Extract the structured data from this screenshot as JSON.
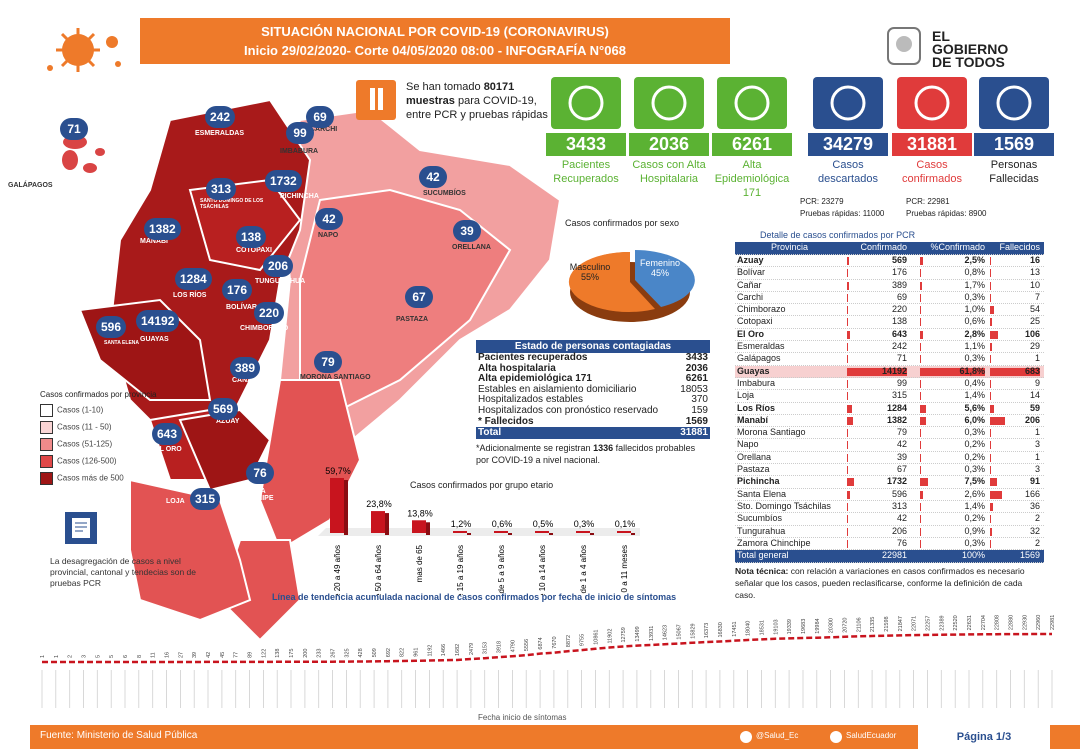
{
  "header": {
    "title": "SITUACIÓN NACIONAL POR  COVID-19 (CORONAVIRUS)",
    "subtitle": "Inicio 29/02/2020- Corte 04/05/2020 08:00  - INFOGRAFÍA N°068"
  },
  "logo": {
    "line1": "EL",
    "line2": "GOBIERNO",
    "line3": "DE TODOS"
  },
  "muestras": {
    "text_pre": "Se han tomado",
    "number": "80171",
    "text_bold": "muestras",
    "text_post": "para COVID-19, entre PCR y pruebas rápidas"
  },
  "stats": [
    {
      "value": "3433",
      "label": "Pacientes Recuperados",
      "color": "#5bb233",
      "icon": "recovered-icon"
    },
    {
      "value": "2036",
      "label": "Casos con Alta Hospitalaria",
      "color": "#5bb233",
      "icon": "hospital-discharge-icon"
    },
    {
      "value": "6261",
      "label": "Alta Epidemiológica 171",
      "color": "#5bb233",
      "icon": "epidemiological-icon"
    },
    {
      "value": "34279",
      "label": "Casos descartados",
      "color": "#2a4f8f",
      "icon": "minus-icon"
    },
    {
      "value": "31881",
      "label": "Casos confirmados",
      "color": "#e03b3b",
      "icon": "check-icon"
    },
    {
      "value": "1569",
      "label": "Personas Fallecidas",
      "color": "#2a4f8f",
      "icon": "ribbon-icon"
    }
  ],
  "tests": {
    "descartados_pcr": "PCR: 23279",
    "descartados_rapidas": "Pruebas rápidas: 11000",
    "confirmados_pcr": "PCR: 22981",
    "confirmados_rapidas": "Pruebas rápidas: 8900"
  },
  "map_bubbles": [
    {
      "v": "71"
    },
    {
      "v": "242"
    },
    {
      "v": "69"
    },
    {
      "v": "99"
    },
    {
      "v": "42"
    },
    {
      "v": "313"
    },
    {
      "v": "1732"
    },
    {
      "v": "1382"
    },
    {
      "v": "138"
    },
    {
      "v": "42"
    },
    {
      "v": "39"
    },
    {
      "v": "206"
    },
    {
      "v": "1284"
    },
    {
      "v": "176"
    },
    {
      "v": "67"
    },
    {
      "v": "220"
    },
    {
      "v": "596"
    },
    {
      "v": "14192"
    },
    {
      "v": "79"
    },
    {
      "v": "389"
    },
    {
      "v": "569"
    },
    {
      "v": "643"
    },
    {
      "v": "76"
    },
    {
      "v": "315"
    }
  ],
  "map_labels": {
    "galapagos": "GALÁPAGOS",
    "esmeraldas": "ESMERALDAS",
    "carchi": "CARCHI",
    "imbabura": "IMBABURA",
    "sucumbios": "SUCUMBÍOS",
    "pichincha": "PICHINCHA",
    "tsachilas": "SANTO DOMINGO DE LOS TSÁCHILAS",
    "manabi": "MANABÍ",
    "cotopaxi": "COTOPAXI",
    "napo": "NAPO",
    "orellana": "ORELLANA",
    "tungurahua": "TUNGURAHUA",
    "losrios": "LOS RÍOS",
    "bolivar": "BOLÍVAR",
    "pastaza": "PASTAZA",
    "chimborazo": "CHIMBORAZO",
    "guayas": "GUAYAS",
    "santaelena": "SANTA ELENA",
    "morona": "MORONA SANTIAGO",
    "canar": "CAÑAR",
    "azuay": "AZUAY",
    "elro": "EL ORO",
    "zamora": "ZAMORA CHINCHIPE",
    "loja": "LOJA"
  },
  "legend": {
    "title": "Casos confirmados por provincia",
    "items": [
      {
        "label": "Casos (1-10)",
        "color": "#ffffff"
      },
      {
        "label": "Casos (11 - 50)",
        "color": "#f9d4d4"
      },
      {
        "label": "Casos (51-125)",
        "color": "#f08b8b"
      },
      {
        "label": "Casos (126-500)",
        "color": "#e04848"
      },
      {
        "label": "Casos más de 500",
        "color": "#9e1515"
      }
    ]
  },
  "disaggregation_note": "La desagregación de casos a nivel provincial, cantonal y tendecias son de pruebas PCR",
  "sexo": {
    "title": "Casos confirmados por sexo",
    "labels": [
      "Masculino",
      "Femenino"
    ],
    "percents": [
      "55%",
      "45%"
    ],
    "colors": [
      "#ee7a2a",
      "#4a86c8"
    ]
  },
  "estado": {
    "title": "Estado de personas contagiadas",
    "rows": [
      {
        "label": "Pacientes recuperados",
        "value": "3433",
        "bold": true
      },
      {
        "label": "Alta hospitalaria",
        "value": "2036",
        "bold": true
      },
      {
        "label": "Alta epidemiológica 171",
        "value": "6261",
        "bold": true
      },
      {
        "label": "Estables en aislamiento domiciliario",
        "value": "18053",
        "bold": false
      },
      {
        "label": "Hospitalizados estables",
        "value": "370",
        "bold": false
      },
      {
        "label": "Hospitalizados con pronóstico reservado",
        "value": "159",
        "bold": false
      },
      {
        "label": "* Fallecidos",
        "value": "1569",
        "bold": true
      }
    ],
    "total_label": "Total",
    "total_value": "31881",
    "note_pre": "*Adicionalmente se registran",
    "note_num": "1336",
    "note_post": "fallecidos probables por COVID-19 a nivel nacional."
  },
  "table": {
    "title": "Detalle de casos confirmados por PCR",
    "headers": [
      "Provincia",
      "Confirmado",
      "%Confirmado",
      "Fallecidos"
    ],
    "rows": [
      {
        "p": "Azuay",
        "c": "569",
        "pc": "2,5%",
        "f": "16",
        "b": true,
        "cn": 569,
        "pn": 2.5,
        "fn": 16
      },
      {
        "p": "Bolívar",
        "c": "176",
        "pc": "0,8%",
        "f": "13",
        "b": false,
        "cn": 176,
        "pn": 0.8,
        "fn": 13
      },
      {
        "p": "Cañar",
        "c": "389",
        "pc": "1,7%",
        "f": "10",
        "b": false,
        "cn": 389,
        "pn": 1.7,
        "fn": 10
      },
      {
        "p": "Carchi",
        "c": "69",
        "pc": "0,3%",
        "f": "7",
        "b": false,
        "cn": 69,
        "pn": 0.3,
        "fn": 7
      },
      {
        "p": "Chimborazo",
        "c": "220",
        "pc": "1,0%",
        "f": "54",
        "b": false,
        "cn": 220,
        "pn": 1.0,
        "fn": 54
      },
      {
        "p": "Cotopaxi",
        "c": "138",
        "pc": "0,6%",
        "f": "25",
        "b": false,
        "cn": 138,
        "pn": 0.6,
        "fn": 25
      },
      {
        "p": "El Oro",
        "c": "643",
        "pc": "2,8%",
        "f": "106",
        "b": true,
        "cn": 643,
        "pn": 2.8,
        "fn": 106
      },
      {
        "p": "Esmeraldas",
        "c": "242",
        "pc": "1,1%",
        "f": "29",
        "b": false,
        "cn": 242,
        "pn": 1.1,
        "fn": 29
      },
      {
        "p": "Galápagos",
        "c": "71",
        "pc": "0,3%",
        "f": "1",
        "b": false,
        "cn": 71,
        "pn": 0.3,
        "fn": 1
      },
      {
        "p": "Guayas",
        "c": "14192",
        "pc": "61,8%",
        "f": "683",
        "b": true,
        "cn": 14192,
        "pn": 61.8,
        "fn": 683
      },
      {
        "p": "Imbabura",
        "c": "99",
        "pc": "0,4%",
        "f": "9",
        "b": false,
        "cn": 99,
        "pn": 0.4,
        "fn": 9
      },
      {
        "p": "Loja",
        "c": "315",
        "pc": "1,4%",
        "f": "14",
        "b": false,
        "cn": 315,
        "pn": 1.4,
        "fn": 14
      },
      {
        "p": "Los Ríos",
        "c": "1284",
        "pc": "5,6%",
        "f": "59",
        "b": true,
        "cn": 1284,
        "pn": 5.6,
        "fn": 59
      },
      {
        "p": "Manabí",
        "c": "1382",
        "pc": "6,0%",
        "f": "206",
        "b": true,
        "cn": 1382,
        "pn": 6.0,
        "fn": 206
      },
      {
        "p": "Morona Santiago",
        "c": "79",
        "pc": "0,3%",
        "f": "1",
        "b": false,
        "cn": 79,
        "pn": 0.3,
        "fn": 1
      },
      {
        "p": "Napo",
        "c": "42",
        "pc": "0,2%",
        "f": "3",
        "b": false,
        "cn": 42,
        "pn": 0.2,
        "fn": 3
      },
      {
        "p": "Orellana",
        "c": "39",
        "pc": "0,2%",
        "f": "1",
        "b": false,
        "cn": 39,
        "pn": 0.2,
        "fn": 1
      },
      {
        "p": "Pastaza",
        "c": "67",
        "pc": "0,3%",
        "f": "3",
        "b": false,
        "cn": 67,
        "pn": 0.3,
        "fn": 3
      },
      {
        "p": "Pichincha",
        "c": "1732",
        "pc": "7,5%",
        "f": "91",
        "b": true,
        "cn": 1732,
        "pn": 7.5,
        "fn": 91
      },
      {
        "p": "Santa Elena",
        "c": "596",
        "pc": "2,6%",
        "f": "166",
        "b": false,
        "cn": 596,
        "pn": 2.6,
        "fn": 166
      },
      {
        "p": "Sto. Domingo Tsáchilas",
        "c": "313",
        "pc": "1,4%",
        "f": "36",
        "b": false,
        "cn": 313,
        "pn": 1.4,
        "fn": 36
      },
      {
        "p": "Sucumbíos",
        "c": "42",
        "pc": "0,2%",
        "f": "2",
        "b": false,
        "cn": 42,
        "pn": 0.2,
        "fn": 2
      },
      {
        "p": "Tungurahua",
        "c": "206",
        "pc": "0,9%",
        "f": "32",
        "b": false,
        "cn": 206,
        "pn": 0.9,
        "fn": 32
      },
      {
        "p": "Zamora Chinchipe",
        "c": "76",
        "pc": "0,3%",
        "f": "2",
        "b": false,
        "cn": 76,
        "pn": 0.3,
        "fn": 2
      }
    ],
    "total": {
      "p": "Total general",
      "c": "22981",
      "pc": "100%",
      "f": "1569"
    },
    "note_bold": "Nota técnica:",
    "note": "con relación a variaciones en casos confirmados es necesario señalar que los casos, pueden reclasificarse, conforme la definición de cada caso."
  },
  "age_chart_title": "Casos confirmados por grupo etario",
  "trend_title": "Línea de tendencia acumulada nacional de casos confirmados por fecha de inicio de síntomas",
  "trend_xlabel": "Fecha inicio de síntomas",
  "footer": {
    "source_label": "Fuente:",
    "source": "Ministerio de Salud Pública",
    "social1": "@Salud_Ec",
    "social2": "SaludEcuador",
    "page": "Página 1/3"
  },
  "chart_data": [
    {
      "type": "bar",
      "title": "Casos confirmados por grupo etario",
      "categories": [
        "de 20 a 49 años",
        "de 50 a 64 años",
        "mas de 65",
        "de 15 a 19 años",
        "de 5 a 9 años",
        "de 10 a 14 años",
        "de 1 a 4 años",
        "de 0 a 11 meses"
      ],
      "values": [
        59.7,
        23.8,
        13.8,
        1.2,
        0.6,
        0.5,
        0.3,
        0.1
      ],
      "labels": [
        "59,7%",
        "23,8%",
        "13,8%",
        "1,2%",
        "0,6%",
        "0,5%",
        "0,3%",
        "0,1%"
      ],
      "color": "#c8141e"
    },
    {
      "type": "pie",
      "title": "Casos confirmados por sexo",
      "categories": [
        "Masculino",
        "Femenino"
      ],
      "values": [
        55,
        45
      ]
    },
    {
      "type": "line",
      "title": "Línea de tendencia acumulada nacional de casos confirmados por fecha de inicio de síntomas",
      "xlabel": "Fecha inicio de síntomas",
      "values": [
        1,
        1,
        2,
        3,
        5,
        5,
        6,
        8,
        11,
        16,
        27,
        39,
        42,
        45,
        77,
        89,
        122,
        138,
        175,
        200,
        233,
        267,
        325,
        428,
        509,
        692,
        822,
        961,
        1192,
        1466,
        1682,
        2479,
        3153,
        3918,
        4790,
        5556,
        6874,
        7670,
        8872,
        9755,
        10861,
        11902,
        12759,
        13499,
        13931,
        14623,
        15067,
        15829,
        16373,
        16830,
        17451,
        18040,
        18531,
        19103,
        19339,
        19683,
        19984,
        20300,
        20720,
        21106,
        21335,
        21598,
        21847,
        22071,
        22257,
        22389,
        22520,
        22631,
        22704,
        22808,
        22880,
        22930,
        22960,
        22981
      ],
      "color": "#c8141e"
    }
  ]
}
